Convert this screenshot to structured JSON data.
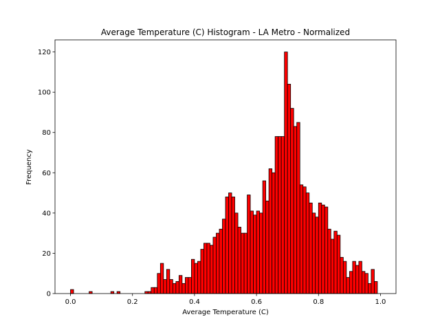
{
  "chart_data": {
    "type": "bar",
    "title": "Average Temperature (C) Histogram - LA Metro - Normalized",
    "xlabel": "Average Temperature (C)",
    "ylabel": "Frequency",
    "xlim": [
      -0.05,
      1.05
    ],
    "ylim": [
      0,
      126
    ],
    "xticks": [
      0.0,
      0.2,
      0.4,
      0.6,
      0.8,
      1.0
    ],
    "xtick_labels": [
      "0.0",
      "0.2",
      "0.4",
      "0.6",
      "0.8",
      "1.0"
    ],
    "yticks": [
      0,
      20,
      40,
      60,
      80,
      100,
      120
    ],
    "ytick_labels": [
      "0",
      "20",
      "40",
      "60",
      "80",
      "100",
      "120"
    ],
    "bin_width": 0.01,
    "bin_start": 0.0,
    "bar_color": "#ff0000",
    "edge_color": "#000000",
    "grid": false,
    "values": [
      2,
      0,
      0,
      0,
      0,
      0,
      1,
      0,
      0,
      0,
      0,
      0,
      0,
      1,
      0,
      1,
      0,
      0,
      0,
      0,
      0,
      0,
      0,
      0,
      1,
      1,
      3,
      3,
      10,
      15,
      7,
      12,
      7,
      5,
      6,
      9,
      5,
      8,
      8,
      17,
      15,
      16,
      22,
      25,
      25,
      24,
      28,
      30,
      32,
      37,
      48,
      50,
      48,
      40,
      33,
      30,
      30,
      49,
      41,
      39,
      41,
      40,
      56,
      46,
      62,
      60,
      78,
      78,
      78,
      120,
      104,
      92,
      83,
      85,
      54,
      53,
      50,
      45,
      40,
      38,
      45,
      44,
      43,
      32,
      27,
      31,
      29,
      18,
      16,
      8,
      11,
      16,
      14,
      16,
      11,
      10,
      5,
      12,
      6
    ]
  }
}
